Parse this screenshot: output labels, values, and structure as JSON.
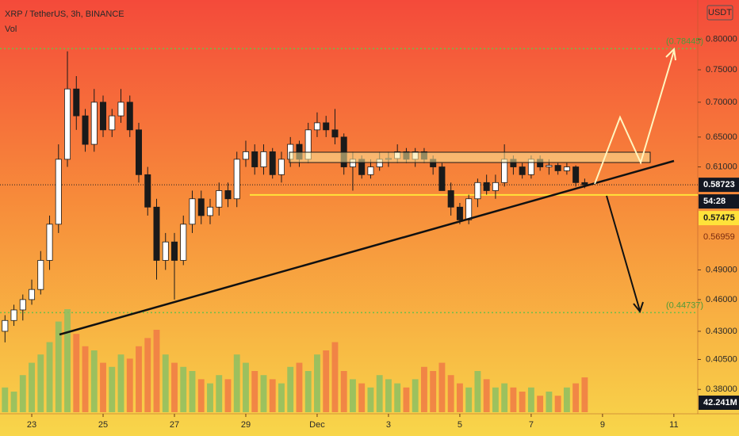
{
  "chart_data": {
    "type": "candlestick",
    "title": "XRP / TetherUS, 3h, BINANCE",
    "volume_title": "Vol",
    "currency": "USDT",
    "log_scale": true,
    "up_color": "#ffffff",
    "down_color": "#1a1a1a",
    "volume_up_color": "#8cc063",
    "volume_down_color": "#f07a45",
    "x": [
      22.25,
      22.5,
      22.75,
      23,
      23.25,
      23.5,
      23.75,
      24,
      24.25,
      24.5,
      24.75,
      25,
      25.25,
      25.5,
      25.75,
      26,
      26.25,
      26.5,
      26.75,
      27,
      27.25,
      27.5,
      27.75,
      28,
      28.25,
      28.5,
      28.75,
      29,
      29.25,
      29.5,
      29.75,
      30,
      30.25,
      30.5,
      30.75,
      31,
      31.25,
      31.5,
      31.75,
      32,
      32.25,
      32.5,
      32.75,
      33,
      33.25,
      33.5,
      33.75,
      34,
      34.25,
      34.5,
      34.75,
      35,
      35.25,
      35.5,
      35.75,
      36,
      36.25,
      36.5,
      36.75,
      37,
      37.25,
      37.5,
      37.75,
      38,
      38.25,
      38.5
    ],
    "open": [
      0.43,
      0.44,
      0.45,
      0.46,
      0.47,
      0.5,
      0.54,
      0.62,
      0.72,
      0.68,
      0.64,
      0.7,
      0.66,
      0.68,
      0.7,
      0.66,
      0.6,
      0.56,
      0.5,
      0.52,
      0.5,
      0.54,
      0.57,
      0.55,
      0.56,
      0.58,
      0.57,
      0.62,
      0.63,
      0.61,
      0.63,
      0.6,
      0.62,
      0.64,
      0.62,
      0.66,
      0.67,
      0.66,
      0.65,
      0.61,
      0.62,
      0.6,
      0.61,
      0.62,
      0.621,
      0.63,
      0.62,
      0.63,
      0.62,
      0.61,
      0.58,
      0.56,
      0.545,
      0.57,
      0.59,
      0.58,
      0.59,
      0.62,
      0.61,
      0.6,
      0.62,
      0.61,
      0.612,
      0.605,
      0.61,
      0.59
    ],
    "high": [
      0.445,
      0.455,
      0.465,
      0.48,
      0.51,
      0.55,
      0.64,
      0.78,
      0.74,
      0.69,
      0.72,
      0.71,
      0.69,
      0.72,
      0.71,
      0.67,
      0.61,
      0.57,
      0.53,
      0.53,
      0.55,
      0.58,
      0.58,
      0.57,
      0.59,
      0.59,
      0.63,
      0.645,
      0.64,
      0.64,
      0.635,
      0.63,
      0.65,
      0.645,
      0.67,
      0.685,
      0.68,
      0.69,
      0.655,
      0.63,
      0.625,
      0.62,
      0.63,
      0.63,
      0.64,
      0.635,
      0.635,
      0.635,
      0.625,
      0.615,
      0.59,
      0.565,
      0.575,
      0.595,
      0.6,
      0.6,
      0.64,
      0.625,
      0.615,
      0.625,
      0.625,
      0.62,
      0.615,
      0.615,
      0.612,
      0.595
    ],
    "low": [
      0.42,
      0.435,
      0.44,
      0.455,
      0.465,
      0.49,
      0.53,
      0.61,
      0.66,
      0.63,
      0.63,
      0.65,
      0.65,
      0.67,
      0.65,
      0.59,
      0.55,
      0.48,
      0.49,
      0.46,
      0.495,
      0.53,
      0.54,
      0.54,
      0.55,
      0.56,
      0.56,
      0.61,
      0.6,
      0.6,
      0.595,
      0.59,
      0.61,
      0.61,
      0.615,
      0.65,
      0.65,
      0.64,
      0.6,
      0.58,
      0.595,
      0.595,
      0.605,
      0.61,
      0.615,
      0.615,
      0.61,
      0.615,
      0.6,
      0.58,
      0.55,
      0.54,
      0.54,
      0.56,
      0.575,
      0.57,
      0.585,
      0.6,
      0.595,
      0.595,
      0.605,
      0.6,
      0.6,
      0.6,
      0.585,
      0.583
    ],
    "close": [
      0.44,
      0.45,
      0.46,
      0.47,
      0.5,
      0.54,
      0.62,
      0.72,
      0.68,
      0.64,
      0.7,
      0.66,
      0.68,
      0.7,
      0.66,
      0.6,
      0.56,
      0.5,
      0.52,
      0.5,
      0.54,
      0.57,
      0.55,
      0.56,
      0.58,
      0.57,
      0.62,
      0.63,
      0.61,
      0.63,
      0.6,
      0.62,
      0.64,
      0.62,
      0.66,
      0.67,
      0.66,
      0.65,
      0.61,
      0.62,
      0.6,
      0.61,
      0.62,
      0.621,
      0.63,
      0.62,
      0.63,
      0.62,
      0.61,
      0.58,
      0.56,
      0.545,
      0.57,
      0.59,
      0.58,
      0.59,
      0.62,
      0.61,
      0.6,
      0.62,
      0.61,
      0.612,
      0.605,
      0.61,
      0.59,
      0.58723
    ],
    "volume": [
      30,
      25,
      45,
      60,
      70,
      85,
      110,
      125,
      95,
      80,
      75,
      60,
      55,
      70,
      65,
      80,
      90,
      100,
      70,
      60,
      55,
      50,
      40,
      35,
      45,
      40,
      70,
      60,
      50,
      45,
      40,
      35,
      55,
      60,
      50,
      70,
      75,
      85,
      50,
      40,
      35,
      30,
      45,
      40,
      35,
      30,
      40,
      55,
      50,
      60,
      45,
      35,
      30,
      50,
      40,
      30,
      35,
      30,
      25,
      30,
      20,
      25,
      20,
      30,
      35,
      42.241
    ],
    "volume_badge": "42.241M",
    "xlim": [
      22.11,
      41.67
    ],
    "xticks": [
      23,
      25,
      27,
      29,
      {
        "value": 31,
        "label": "Dec"
      },
      {
        "value": 33,
        "label": "3"
      },
      {
        "value": 35,
        "label": "5"
      },
      {
        "value": 37,
        "label": "7"
      },
      {
        "value": 39,
        "label": "9"
      },
      {
        "value": 41,
        "label": "11"
      }
    ],
    "ylim": [
      0.362,
      0.87
    ],
    "yticks": [
      {
        "value": 0.8,
        "label": "0.80000"
      },
      {
        "value": 0.75,
        "label": "0.75000"
      },
      {
        "value": 0.7,
        "label": "0.70000"
      },
      {
        "value": 0.65,
        "label": "0.65000"
      },
      {
        "value": 0.61,
        "label": "0.61000"
      },
      {
        "value": 0.49,
        "label": "0.49000"
      },
      {
        "value": 0.46,
        "label": "0.46000"
      },
      {
        "value": 0.43,
        "label": "0.43000"
      },
      {
        "value": 0.405,
        "label": "0.40500"
      },
      {
        "value": 0.38,
        "label": "0.38000"
      }
    ],
    "current_price": {
      "value": 0.58723,
      "label": "0.58723"
    },
    "countdown": "54:28",
    "support": {
      "value": 0.57475,
      "label": "0.57475"
    },
    "price_badge": {
      "value": 0.56959,
      "label": "0.56959"
    },
    "targets": [
      {
        "value": 0.78445,
        "label": "(0.78445)"
      },
      {
        "value": 0.44737,
        "label": "(0.44737)"
      }
    ]
  }
}
